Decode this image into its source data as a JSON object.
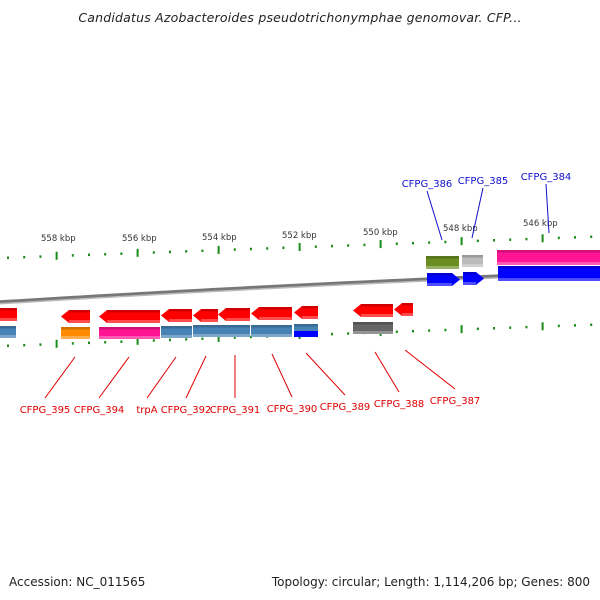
{
  "title": "Candidatus Azobacteroides pseudotrichonymphae genomovar. CFP...",
  "footer": {
    "accession": "Accession: NC_011565",
    "summary": "Topology: circular; Length: 1,114,206 bp; Genes: 800"
  },
  "colors": {
    "tick": "#1a8a1a",
    "backbone": "#777777",
    "reverse_gene": "#ff0000",
    "forward_gene": "#0000ff",
    "label_reverse": "#e00000",
    "label_forward": "#1010cc",
    "cds_steelblue": "#4682b4",
    "cds_pink": "#ff1493",
    "cds_orange": "#ff8c00",
    "cds_olive": "#6b8e23",
    "cds_gray": "#bbbbbb",
    "cds_darkgray": "#666666"
  },
  "scale_labels": [
    "558 kbp",
    "556 kbp",
    "554 kbp",
    "552 kbp",
    "550 kbp",
    "548 kbp",
    "546 kbp"
  ],
  "genes_reverse_labels": [
    "CFPG_395",
    "CFPG_394",
    "trpA",
    "CFPG_392",
    "CFPG_391",
    "CFPG_390",
    "CFPG_389",
    "CFPG_388",
    "CFPG_387"
  ],
  "genes_forward_labels": [
    "CFPG_386",
    "CFPG_385",
    "CFPG_384"
  ]
}
